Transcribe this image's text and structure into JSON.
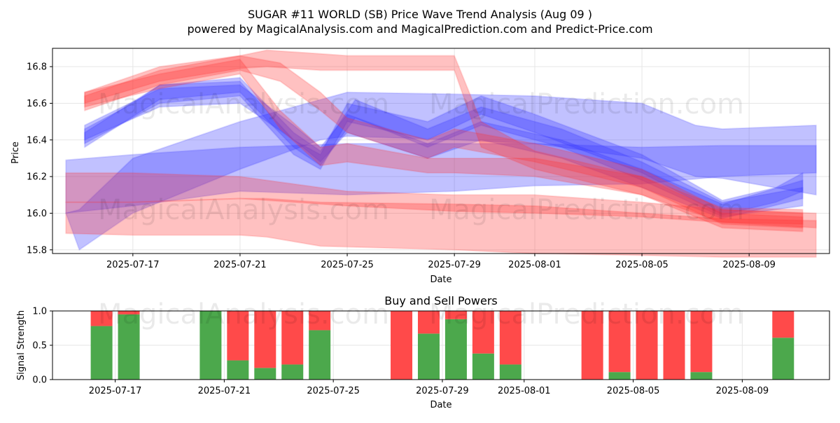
{
  "title": "SUGAR #11 WORLD (SB) Price Wave Trend Analysis (Aug 09 )",
  "subtitle": "powered by MagicalAnalysis.com and MagicalPrediction.com and Predict-Price.com",
  "watermarks": [
    "MagicalAnalysis.com",
    "MagicalPrediction.com"
  ],
  "colors": {
    "buy": "#4ca84c",
    "sell": "#ff4a4a",
    "blue_band": "#3333ff",
    "red_band": "#ff3333"
  },
  "chart_data": [
    {
      "type": "area",
      "xlabel": "Date",
      "ylabel": "Price",
      "xlim": [
        "2025-07-14",
        "2025-08-12"
      ],
      "ylim": [
        15.78,
        16.9
      ],
      "yticks": [
        15.8,
        16.0,
        16.2,
        16.4,
        16.6,
        16.8
      ],
      "xticks": [
        "2025-07-17",
        "2025-07-21",
        "2025-07-25",
        "2025-07-29",
        "2025-08-01",
        "2025-08-05",
        "2025-08-09"
      ],
      "grid": true,
      "bands": [
        {
          "color": "blue",
          "points": [
            [
              "2025-07-14.5",
              16.0,
              16.29
            ],
            [
              "2025-07-17",
              16.04,
              16.32
            ],
            [
              "2025-07-21",
              16.12,
              16.36
            ],
            [
              "2025-07-25",
              16.1,
              16.38
            ],
            [
              "2025-07-29",
              16.12,
              16.38
            ],
            [
              "2025-08-01",
              16.15,
              16.38
            ],
            [
              "2025-08-05",
              16.16,
              16.36
            ],
            [
              "2025-08-08",
              16.2,
              16.37
            ],
            [
              "2025-08-11.5",
              16.22,
              16.37
            ]
          ]
        },
        {
          "color": "blue",
          "points": [
            [
              "2025-07-14.5",
              16.0,
              16.0
            ],
            [
              "2025-07-15",
              15.8,
              16.02
            ],
            [
              "2025-07-17",
              16.0,
              16.3
            ],
            [
              "2025-07-21",
              16.24,
              16.5
            ],
            [
              "2025-07-24",
              16.4,
              16.62
            ],
            [
              "2025-07-25",
              16.42,
              16.66
            ],
            [
              "2025-07-29",
              16.4,
              16.65
            ],
            [
              "2025-08-01",
              16.38,
              16.64
            ],
            [
              "2025-08-05",
              16.3,
              16.6
            ],
            [
              "2025-08-07",
              16.2,
              16.48
            ],
            [
              "2025-08-08",
              16.19,
              16.46
            ],
            [
              "2025-08-11.5",
              16.1,
              16.48
            ]
          ]
        },
        {
          "color": "blue",
          "points": [
            [
              "2025-07-15.2",
              16.38,
              16.46
            ],
            [
              "2025-07-17",
              16.52,
              16.6
            ],
            [
              "2025-07-18",
              16.6,
              16.7
            ],
            [
              "2025-07-21",
              16.64,
              16.72
            ],
            [
              "2025-07-23",
              16.32,
              16.4
            ],
            [
              "2025-07-24",
              16.24,
              16.32
            ],
            [
              "2025-07-25",
              16.5,
              16.6
            ],
            [
              "2025-07-28",
              16.4,
              16.5
            ],
            [
              "2025-07-30",
              16.54,
              16.64
            ],
            [
              "2025-08-01",
              16.44,
              16.54
            ],
            [
              "2025-08-05",
              16.22,
              16.32
            ],
            [
              "2025-08-08",
              15.99,
              16.07
            ],
            [
              "2025-08-10",
              16.06,
              16.14
            ],
            [
              "2025-08-11",
              16.12,
              16.22
            ]
          ]
        },
        {
          "color": "blue",
          "points": [
            [
              "2025-07-15.2",
              16.36,
              16.44
            ],
            [
              "2025-07-18",
              16.62,
              16.7
            ],
            [
              "2025-07-21",
              16.66,
              16.74
            ],
            [
              "2025-07-23",
              16.36,
              16.44
            ],
            [
              "2025-07-24",
              16.26,
              16.34
            ],
            [
              "2025-07-25.3",
              16.52,
              16.62
            ],
            [
              "2025-07-28",
              16.36,
              16.46
            ],
            [
              "2025-07-30",
              16.48,
              16.58
            ],
            [
              "2025-08-02",
              16.36,
              16.46
            ],
            [
              "2025-08-05",
              16.18,
              16.28
            ],
            [
              "2025-08-08",
              15.98,
              16.06
            ],
            [
              "2025-08-11",
              16.04,
              16.14
            ]
          ]
        },
        {
          "color": "blue",
          "points": [
            [
              "2025-07-15.2",
              16.4,
              16.48
            ],
            [
              "2025-07-18",
              16.58,
              16.68
            ],
            [
              "2025-07-21",
              16.6,
              16.7
            ],
            [
              "2025-07-23",
              16.4,
              16.48
            ],
            [
              "2025-07-24",
              16.28,
              16.36
            ],
            [
              "2025-07-25",
              16.44,
              16.54
            ],
            [
              "2025-07-28",
              16.3,
              16.38
            ],
            [
              "2025-07-30",
              16.4,
              16.5
            ],
            [
              "2025-08-02",
              16.3,
              16.4
            ],
            [
              "2025-08-05",
              16.14,
              16.24
            ],
            [
              "2025-08-08",
              15.97,
              16.05
            ],
            [
              "2025-08-11",
              16.08,
              16.18
            ]
          ]
        },
        {
          "color": "red",
          "points": [
            [
              "2025-07-14.5",
              16.06,
              16.22
            ],
            [
              "2025-07-17",
              16.06,
              16.22
            ],
            [
              "2025-07-21",
              16.08,
              16.2
            ],
            [
              "2025-07-25",
              16.04,
              16.12
            ],
            [
              "2025-07-29",
              16.01,
              16.1
            ],
            [
              "2025-08-01",
              16.0,
              16.1
            ],
            [
              "2025-08-05",
              15.98,
              16.06
            ],
            [
              "2025-08-08",
              15.95,
              16.02
            ],
            [
              "2025-08-11.5",
              15.92,
              16.0
            ]
          ]
        },
        {
          "color": "red",
          "points": [
            [
              "2025-07-14.5",
              15.89,
              16.06
            ],
            [
              "2025-07-17",
              15.88,
              16.06
            ],
            [
              "2025-07-21",
              15.88,
              16.08
            ],
            [
              "2025-07-22",
              15.87,
              16.08
            ],
            [
              "2025-07-24",
              15.82,
              16.06
            ],
            [
              "2025-07-29",
              15.8,
              16.05
            ],
            [
              "2025-08-01",
              15.78,
              16.04
            ],
            [
              "2025-08-05",
              15.77,
              16.0
            ],
            [
              "2025-08-08",
              15.76,
              15.97
            ],
            [
              "2025-08-11.5",
              15.76,
              15.96
            ]
          ]
        },
        {
          "color": "red",
          "points": [
            [
              "2025-07-15.2",
              16.6,
              16.66
            ],
            [
              "2025-07-18",
              16.72,
              16.8
            ],
            [
              "2025-07-21",
              16.79,
              16.86
            ],
            [
              "2025-07-22",
              16.8,
              16.89
            ],
            [
              "2025-07-24",
              16.78,
              16.87
            ],
            [
              "2025-07-25",
              16.78,
              16.86
            ],
            [
              "2025-07-29",
              16.78,
              16.86
            ],
            [
              "2025-07-30",
              16.36,
              16.5
            ],
            [
              "2025-08-01",
              16.24,
              16.34
            ],
            [
              "2025-08-05",
              16.1,
              16.2
            ],
            [
              "2025-08-08",
              15.92,
              16.0
            ],
            [
              "2025-08-11",
              15.9,
              15.98
            ]
          ]
        },
        {
          "color": "red",
          "points": [
            [
              "2025-07-15.2",
              16.56,
              16.64
            ],
            [
              "2025-07-18",
              16.7,
              16.78
            ],
            [
              "2025-07-21",
              16.78,
              16.86
            ],
            [
              "2025-07-22.5",
              16.72,
              16.82
            ],
            [
              "2025-07-24",
              16.56,
              16.66
            ],
            [
              "2025-07-25",
              16.44,
              16.52
            ],
            [
              "2025-07-28",
              16.3,
              16.4
            ],
            [
              "2025-07-29",
              16.36,
              16.46
            ],
            [
              "2025-08-01",
              16.28,
              16.38
            ],
            [
              "2025-08-05",
              16.14,
              16.24
            ],
            [
              "2025-08-08",
              15.94,
              16.02
            ],
            [
              "2025-08-11",
              15.92,
              16.0
            ]
          ]
        },
        {
          "color": "red",
          "points": [
            [
              "2025-07-15.2",
              16.58,
              16.66
            ],
            [
              "2025-07-18",
              16.68,
              16.76
            ],
            [
              "2025-07-21",
              16.76,
              16.84
            ],
            [
              "2025-07-22.5",
              16.46,
              16.56
            ],
            [
              "2025-07-24",
              16.26,
              16.36
            ],
            [
              "2025-07-25",
              16.28,
              16.38
            ],
            [
              "2025-07-28",
              16.22,
              16.3
            ],
            [
              "2025-07-29",
              16.22,
              16.3
            ],
            [
              "2025-08-01",
              16.2,
              16.3
            ],
            [
              "2025-08-05",
              16.1,
              16.2
            ],
            [
              "2025-08-08",
              15.95,
              16.03
            ],
            [
              "2025-08-11",
              15.94,
              16.02
            ]
          ]
        }
      ]
    },
    {
      "type": "bar",
      "title": "Buy and Sell Powers",
      "xlabel": "Date",
      "ylabel": "Signal Strength",
      "ylim": [
        0,
        1
      ],
      "yticks": [
        "0.0",
        "0.5",
        "1.0"
      ],
      "xticks": [
        "2025-07-17",
        "2025-07-21",
        "2025-07-25",
        "2025-07-29",
        "2025-08-01",
        "2025-08-05",
        "2025-08-09"
      ],
      "grid": true,
      "categories": [
        "2025-07-16",
        "2025-07-17",
        "2025-07-20",
        "2025-07-21",
        "2025-07-22",
        "2025-07-23",
        "2025-07-24",
        "2025-07-27",
        "2025-07-28",
        "2025-07-29",
        "2025-07-30",
        "2025-07-31",
        "2025-08-03",
        "2025-08-04",
        "2025-08-05",
        "2025-08-06",
        "2025-08-07",
        "2025-08-10"
      ],
      "series": [
        {
          "name": "buy",
          "values": [
            0.78,
            0.95,
            1.0,
            0.28,
            0.17,
            0.22,
            0.72,
            0.0,
            0.67,
            0.88,
            0.38,
            0.22,
            0.0,
            0.11,
            0.0,
            0.0,
            0.11,
            0.61
          ]
        },
        {
          "name": "sell",
          "values": [
            0.22,
            0.05,
            0.0,
            0.72,
            0.83,
            0.78,
            0.28,
            1.0,
            0.33,
            0.12,
            0.62,
            0.78,
            1.0,
            0.89,
            1.0,
            1.0,
            0.89,
            0.39
          ]
        }
      ]
    }
  ]
}
